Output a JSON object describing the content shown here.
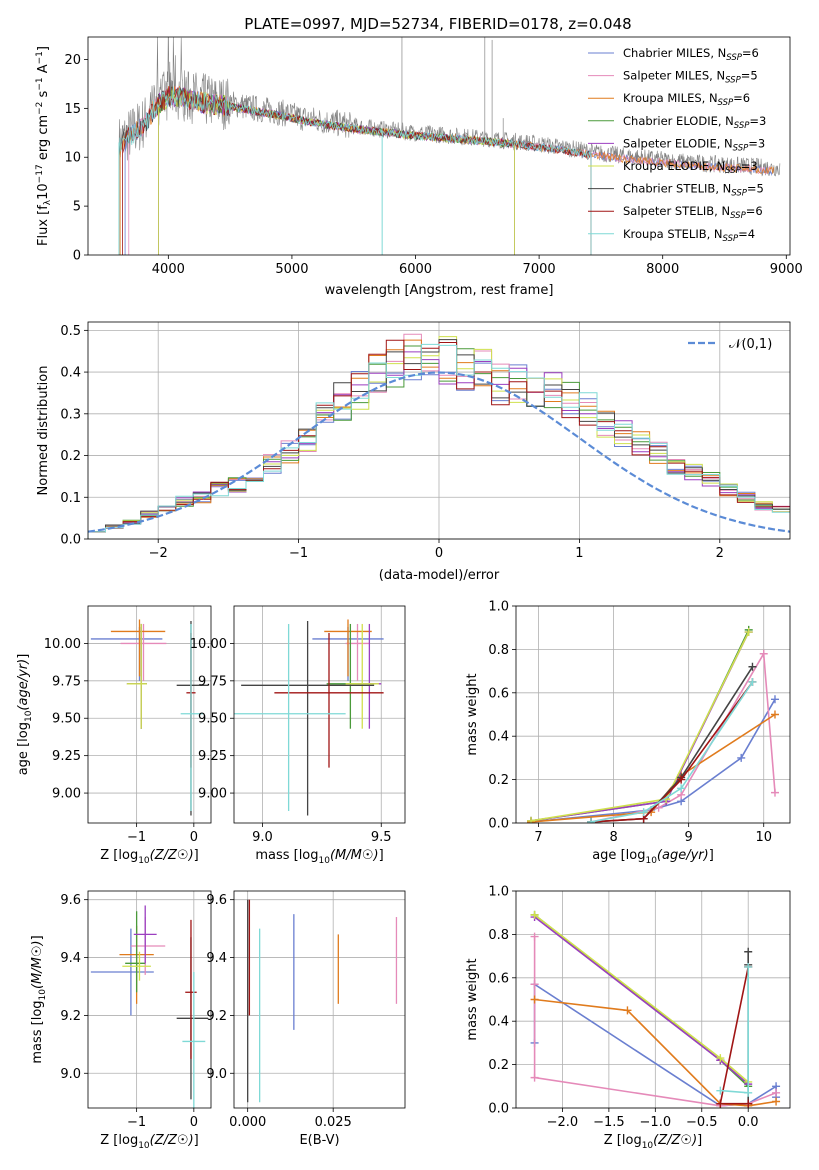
{
  "title": "PLATE=0997, MJD=52734, FIBERID=0178, z=0.048",
  "colors": {
    "Chabrier MILES": "#6a7fd0",
    "Salpeter MILES": "#e58ab9",
    "Kroupa MILES": "#e07b1d",
    "Chabrier ELODIE": "#4a9a3a",
    "Salpeter ELODIE": "#9b3fc0",
    "Kroupa ELODIE": "#cfe04d",
    "Chabrier STELIB": "#444444",
    "Salpeter STELIB": "#a01515",
    "Kroupa STELIB": "#7fd9d6",
    "data": "#808080"
  },
  "chart_data": [
    {
      "type": "line",
      "xlabel": "wavelength [Angstrom, rest frame]",
      "ylabel": "Flux [f_λ 10^-17 erg cm^-2 s^-1 A^-1]",
      "xlim": [
        3350,
        9030
      ],
      "ylim": [
        0,
        22.3
      ],
      "xticks": [
        4000,
        5000,
        6000,
        7000,
        8000,
        9000
      ],
      "yticks": [
        0,
        5,
        10,
        15,
        20
      ],
      "grid": false,
      "legend_position": "top-right",
      "legend": [
        {
          "name": "Chabrier MILES",
          "sub": "SSP",
          "n": "6"
        },
        {
          "name": "Salpeter MILES",
          "sub": "SSP",
          "n": "5"
        },
        {
          "name": "Kroupa MILES",
          "sub": "SSP",
          "n": "6"
        },
        {
          "name": "Chabrier ELODIE",
          "sub": "SSP",
          "n": "3"
        },
        {
          "name": "Salpeter ELODIE",
          "sub": "SSP",
          "n": "3"
        },
        {
          "name": "Kroupa ELODIE",
          "sub": "SSP",
          "n": "3"
        },
        {
          "name": "Chabrier STELIB",
          "sub": "SSP",
          "n": "5"
        },
        {
          "name": "Salpeter STELIB",
          "sub": "SSP",
          "n": "6"
        },
        {
          "name": "Kroupa STELIB",
          "sub": "SSP",
          "n": "4"
        }
      ],
      "continuum_x": [
        3600,
        3700,
        3800,
        3900,
        4000,
        4100,
        4300,
        4500,
        4700,
        4900,
        5100,
        5300,
        5500,
        5700,
        6000,
        6300,
        6600,
        6900,
        7200,
        7500,
        7800,
        8100,
        8400,
        8700,
        8900
      ],
      "continuum_y": [
        11.5,
        12.5,
        13.5,
        15.5,
        16.5,
        16.5,
        15.8,
        15.5,
        15.0,
        14.6,
        14.0,
        13.6,
        13.2,
        12.9,
        12.5,
        12.2,
        11.9,
        11.5,
        11.0,
        10.4,
        10.0,
        9.6,
        9.3,
        9.1,
        8.9
      ]
    },
    {
      "type": "histogram",
      "xlabel": "(data-model)/error",
      "ylabel": "Normed distribution",
      "xlim": [
        -2.5,
        2.5
      ],
      "ylim": [
        0,
        0.52
      ],
      "xticks": [
        -2,
        -1,
        0,
        1,
        2
      ],
      "yticks": [
        0.0,
        0.1,
        0.2,
        0.3,
        0.4,
        0.5
      ],
      "grid": true,
      "legend_position": "top-right",
      "legend": [
        {
          "name": "𝒩(0,1)"
        }
      ],
      "bin_width": 0.125,
      "bin_start": -2.5,
      "template": [
        0.02,
        0.03,
        0.04,
        0.06,
        0.07,
        0.09,
        0.1,
        0.12,
        0.13,
        0.15,
        0.18,
        0.21,
        0.24,
        0.29,
        0.33,
        0.36,
        0.39,
        0.42,
        0.44,
        0.45,
        0.43,
        0.41,
        0.4,
        0.37,
        0.38,
        0.36,
        0.35,
        0.33,
        0.31,
        0.28,
        0.25,
        0.23,
        0.21,
        0.18,
        0.16,
        0.14,
        0.12,
        0.1,
        0.08,
        0.07
      ],
      "normal_curve": {
        "mean": 0,
        "sigma": 1
      }
    },
    {
      "type": "errorbar",
      "xlabel": "Z [log10(Z/Z☉)]",
      "ylabel": "age  [log10(age/yr)]",
      "xlim": [
        -1.85,
        0.3
      ],
      "ylim": [
        8.8,
        10.25
      ],
      "xticks": [
        -1,
        0
      ],
      "yticks": [
        9.0,
        9.25,
        9.5,
        9.75,
        10.0
      ],
      "grid": true,
      "points": [
        {
          "series": "Chabrier MILES",
          "x": -0.95,
          "xerr": [
            0.85,
            0.4
          ],
          "y": 10.03,
          "yerr": [
            0.28,
            0.08
          ]
        },
        {
          "series": "Salpeter MILES",
          "x": -0.88,
          "xerr": [
            0.4,
            0.4
          ],
          "y": 10.0,
          "yerr": [
            0.25,
            0.13
          ]
        },
        {
          "series": "Kroupa MILES",
          "x": -0.95,
          "xerr": [
            0.5,
            0.45
          ],
          "y": 10.08,
          "yerr": [
            0.3,
            0.08
          ]
        },
        {
          "series": "Chabrier ELODIE",
          "x": -0.92,
          "xerr": [
            0.25,
            0.1
          ],
          "y": 9.73,
          "yerr": [
            0.3,
            0.4
          ]
        },
        {
          "series": "Salpeter ELODIE",
          "x": -0.92,
          "xerr": [
            0.25,
            0.1
          ],
          "y": 9.73,
          "yerr": [
            0.3,
            0.4
          ]
        },
        {
          "series": "Kroupa ELODIE",
          "x": -0.92,
          "xerr": [
            0.25,
            0.1
          ],
          "y": 9.73,
          "yerr": [
            0.3,
            0.4
          ]
        },
        {
          "series": "Chabrier STELIB",
          "x": -0.05,
          "xerr": [
            0.25,
            0.3
          ],
          "y": 9.72,
          "yerr": [
            0.87,
            0.43
          ]
        },
        {
          "series": "Salpeter STELIB",
          "x": -0.05,
          "xerr": [
            0.08,
            0.08
          ],
          "y": 9.67,
          "yerr": [
            0.5,
            0.4
          ]
        },
        {
          "series": "Kroupa STELIB",
          "x": -0.05,
          "xerr": [
            0.18,
            0.22
          ],
          "y": 9.53,
          "yerr": [
            0.65,
            0.6
          ]
        }
      ]
    },
    {
      "type": "errorbar",
      "xlabel": "mass [log10(M/M☉)]",
      "ylabel": "",
      "xlim": [
        8.88,
        9.6
      ],
      "ylim": [
        8.8,
        10.25
      ],
      "xticks": [
        9.0,
        9.5
      ],
      "yticks": [
        9.0,
        9.25,
        9.5,
        9.75,
        10.0
      ],
      "grid": true,
      "points": [
        {
          "series": "Chabrier MILES",
          "x": 9.36,
          "xerr": [
            0.15,
            0.15
          ],
          "y": 10.03,
          "yerr": [
            0.28,
            0.08
          ]
        },
        {
          "series": "Salpeter MILES",
          "x": 9.4,
          "xerr": [
            0.05,
            0.05
          ],
          "y": 10.0,
          "yerr": [
            0.25,
            0.13
          ]
        },
        {
          "series": "Kroupa MILES",
          "x": 9.36,
          "xerr": [
            0.1,
            0.1
          ],
          "y": 10.08,
          "yerr": [
            0.3,
            0.08
          ]
        },
        {
          "series": "Chabrier ELODIE",
          "x": 9.37,
          "xerr": [
            0.1,
            0.1
          ],
          "y": 9.73,
          "yerr": [
            0.3,
            0.4
          ]
        },
        {
          "series": "Salpeter ELODIE",
          "x": 9.45,
          "xerr": [
            0.05,
            0.05
          ],
          "y": 9.73,
          "yerr": [
            0.3,
            0.4
          ]
        },
        {
          "series": "Kroupa ELODIE",
          "x": 9.42,
          "xerr": [
            0.07,
            0.07
          ],
          "y": 9.73,
          "yerr": [
            0.3,
            0.4
          ]
        },
        {
          "series": "Chabrier STELIB",
          "x": 9.19,
          "xerr": [
            0.28,
            0.28
          ],
          "y": 9.72,
          "yerr": [
            0.87,
            0.43
          ]
        },
        {
          "series": "Salpeter STELIB",
          "x": 9.28,
          "xerr": [
            0.23,
            0.23
          ],
          "y": 9.67,
          "yerr": [
            0.5,
            0.4
          ]
        },
        {
          "series": "Kroupa STELIB",
          "x": 9.11,
          "xerr": [
            0.24,
            0.24
          ],
          "y": 9.53,
          "yerr": [
            0.65,
            0.6
          ]
        }
      ]
    },
    {
      "type": "line",
      "xlabel": "age  [log10(age/yr)]",
      "ylabel": "mass weight",
      "xlim": [
        6.7,
        10.35
      ],
      "ylim": [
        0,
        1.0
      ],
      "xticks": [
        7,
        8,
        9,
        10
      ],
      "yticks": [
        0.0,
        0.2,
        0.4,
        0.6,
        0.8,
        1.0
      ],
      "grid": true,
      "series": [
        {
          "name": "Chabrier MILES",
          "x": [
            6.9,
            8.5,
            8.9,
            9.7,
            10.15
          ],
          "y": [
            0.005,
            0.06,
            0.1,
            0.3,
            0.57
          ]
        },
        {
          "name": "Salpeter MILES",
          "x": [
            7.7,
            8.6,
            8.9,
            10.0,
            10.15
          ],
          "y": [
            0.005,
            0.07,
            0.13,
            0.78,
            0.14
          ]
        },
        {
          "name": "Kroupa MILES",
          "x": [
            6.9,
            8.5,
            8.9,
            10.15
          ],
          "y": [
            0.005,
            0.05,
            0.22,
            0.5
          ]
        },
        {
          "name": "Chabrier ELODIE",
          "x": [
            6.9,
            8.7,
            9.8
          ],
          "y": [
            0.01,
            0.1,
            0.89
          ]
        },
        {
          "name": "Salpeter ELODIE",
          "x": [
            6.9,
            8.7,
            9.8
          ],
          "y": [
            0.01,
            0.1,
            0.88
          ]
        },
        {
          "name": "Kroupa ELODIE",
          "x": [
            6.9,
            8.7,
            9.8
          ],
          "y": [
            0.01,
            0.11,
            0.88
          ]
        },
        {
          "name": "Chabrier STELIB",
          "x": [
            7.7,
            8.4,
            8.9,
            9.85
          ],
          "y": [
            0.005,
            0.02,
            0.21,
            0.72
          ]
        },
        {
          "name": "Salpeter STELIB",
          "x": [
            7.7,
            8.4,
            8.9,
            9.85
          ],
          "y": [
            0.005,
            0.02,
            0.2,
            0.65
          ]
        },
        {
          "name": "Kroupa STELIB",
          "x": [
            7.7,
            8.4,
            8.9,
            9.85
          ],
          "y": [
            0.005,
            0.05,
            0.16,
            0.65
          ]
        }
      ]
    },
    {
      "type": "errorbar",
      "xlabel": "Z [log10(Z/Z☉)]",
      "ylabel": "mass [log10(M/M☉)]",
      "xlim": [
        -1.85,
        0.3
      ],
      "ylim": [
        8.88,
        9.63
      ],
      "xticks": [
        -1,
        0
      ],
      "yticks": [
        9.0,
        9.2,
        9.4,
        9.6
      ],
      "grid": true,
      "points": [
        {
          "series": "Chabrier MILES",
          "x": -1.1,
          "xerr": [
            0.7,
            0.4
          ],
          "y": 9.35,
          "yerr": [
            0.15,
            0.15
          ]
        },
        {
          "series": "Salpeter MILES",
          "x": -0.85,
          "xerr": [
            0.25,
            0.35
          ],
          "y": 9.44,
          "yerr": [
            0.1,
            0.1
          ]
        },
        {
          "series": "Kroupa MILES",
          "x": -1.0,
          "xerr": [
            0.3,
            0.3
          ],
          "y": 9.41,
          "yerr": [
            0.17,
            0.1
          ]
        },
        {
          "series": "Chabrier ELODIE",
          "x": -1.0,
          "xerr": [
            0.2,
            0.15
          ],
          "y": 9.38,
          "yerr": [
            0.1,
            0.18
          ]
        },
        {
          "series": "Salpeter ELODIE",
          "x": -0.85,
          "xerr": [
            0.2,
            0.2
          ],
          "y": 9.48,
          "yerr": [
            0.1,
            0.1
          ]
        },
        {
          "series": "Kroupa ELODIE",
          "x": -0.95,
          "xerr": [
            0.3,
            0.2
          ],
          "y": 9.37,
          "yerr": [
            0.05,
            0.05
          ]
        },
        {
          "series": "Chabrier STELIB",
          "x": -0.05,
          "xerr": [
            0.25,
            0.3
          ],
          "y": 9.19,
          "yerr": [
            0.28,
            0.28
          ]
        },
        {
          "series": "Salpeter STELIB",
          "x": -0.05,
          "xerr": [
            0.1,
            0.1
          ],
          "y": 9.28,
          "yerr": [
            0.23,
            0.25
          ]
        },
        {
          "series": "Kroupa STELIB",
          "x": 0.0,
          "xerr": [
            0.2,
            0.2
          ],
          "y": 9.11,
          "yerr": [
            0.24,
            0.24
          ]
        }
      ]
    },
    {
      "type": "errorbar",
      "xlabel": "E(B-V)",
      "ylabel": "",
      "xlim": [
        -0.004,
        0.046
      ],
      "ylim": [
        8.88,
        9.63
      ],
      "xticks": [
        0.0,
        0.025
      ],
      "xtick_labels": [
        "0.000",
        "0.025"
      ],
      "yticks": [
        9.0,
        9.2,
        9.4,
        9.6
      ],
      "grid": true,
      "points": [
        {
          "series": "Chabrier MILES",
          "x": 0.0135,
          "xerr": [
            0,
            0
          ],
          "y": 9.35,
          "yerr": [
            0.2,
            0.2
          ]
        },
        {
          "series": "Salpeter MILES",
          "x": 0.0435,
          "xerr": [
            0,
            0
          ],
          "y": 9.39,
          "yerr": [
            0.15,
            0.15
          ]
        },
        {
          "series": "Kroupa MILES",
          "x": 0.0265,
          "xerr": [
            0,
            0
          ],
          "y": 9.36,
          "yerr": [
            0.12,
            0.12
          ]
        },
        {
          "series": "Chabrier STELIB",
          "x": 0.0,
          "xerr": [
            0,
            0
          ],
          "y": 9.25,
          "yerr": [
            0.35,
            0.35
          ]
        },
        {
          "series": "Salpeter STELIB",
          "x": 0.0005,
          "xerr": [
            0,
            0
          ],
          "y": 9.4,
          "yerr": [
            0.2,
            0.2
          ]
        },
        {
          "series": "Kroupa STELIB",
          "x": 0.0035,
          "xerr": [
            0,
            0
          ],
          "y": 9.2,
          "yerr": [
            0.3,
            0.3
          ]
        }
      ]
    },
    {
      "type": "line",
      "xlabel": "Z [log10(Z/Z☉)]",
      "ylabel": "mass weight",
      "xlim": [
        -2.5,
        0.45
      ],
      "ylim": [
        0,
        1.0
      ],
      "xticks": [
        -2.0,
        -1.5,
        -1.0,
        -0.5,
        0.0
      ],
      "yticks": [
        0.0,
        0.2,
        0.4,
        0.6,
        0.8,
        1.0
      ],
      "grid": true,
      "series": [
        {
          "name": "Chabrier MILES",
          "x": [
            -2.3,
            -2.3,
            -0.3,
            0.0,
            0.3,
            0.3
          ],
          "y": [
            0.3,
            0.57,
            0.01,
            0.02,
            0.1,
            0.05
          ]
        },
        {
          "name": "Salpeter MILES",
          "x": [
            -2.3,
            -2.3,
            -2.3,
            -0.3,
            0.0,
            0.3
          ],
          "y": [
            0.79,
            0.57,
            0.14,
            0.01,
            0.02,
            0.07
          ]
        },
        {
          "name": "Kroupa MILES",
          "x": [
            -2.3,
            -1.3,
            -0.3,
            0.0,
            0.3
          ],
          "y": [
            0.5,
            0.45,
            0.02,
            0.01,
            0.03
          ]
        },
        {
          "name": "Chabrier ELODIE",
          "x": [
            -2.3,
            -0.3,
            0.0
          ],
          "y": [
            0.89,
            0.22,
            0.1
          ]
        },
        {
          "name": "Salpeter ELODIE",
          "x": [
            -2.3,
            -0.3,
            0.0
          ],
          "y": [
            0.88,
            0.22,
            0.11
          ]
        },
        {
          "name": "Kroupa ELODIE",
          "x": [
            -2.3,
            -0.3,
            0.0
          ],
          "y": [
            0.89,
            0.23,
            0.12
          ]
        },
        {
          "name": "Chabrier STELIB",
          "x": [
            0.0,
            0.0,
            0.0
          ],
          "y": [
            0.72,
            0.02,
            0.66
          ]
        },
        {
          "name": "Salpeter STELIB",
          "x": [
            0.0,
            -0.3,
            0.0
          ],
          "y": [
            0.65,
            0.02,
            0.02
          ]
        },
        {
          "name": "Kroupa STELIB",
          "x": [
            -0.3,
            0.0,
            0.0
          ],
          "y": [
            0.08,
            0.07,
            0.65
          ]
        }
      ]
    }
  ]
}
